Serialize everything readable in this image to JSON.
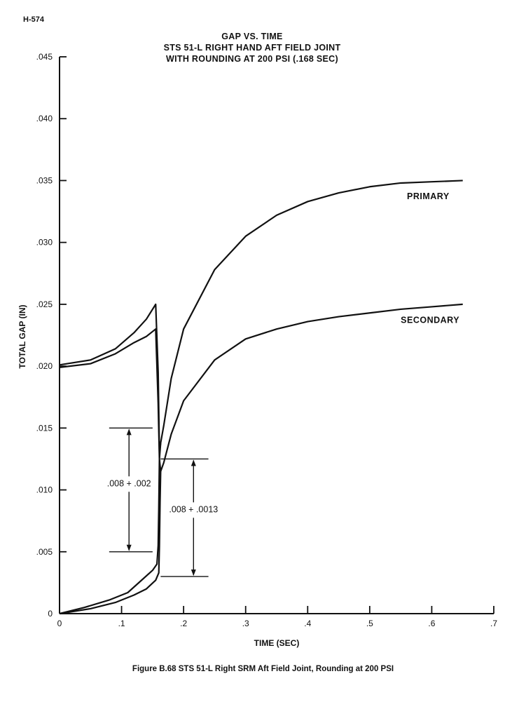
{
  "page_id": "H-574",
  "caption": "Figure B.68 STS 51-L Right SRM Aft Field Joint, Rounding at 200 PSI",
  "chart_data": {
    "type": "line",
    "title_lines": [
      "GAP VS. TIME",
      "STS 51-L RIGHT HAND AFT FIELD JOINT",
      "WITH ROUNDING AT 200 PSI (.168 SEC)"
    ],
    "xlabel": "TIME (SEC)",
    "ylabel": "TOTAL GAP (IN)",
    "xlim": [
      0,
      0.7
    ],
    "ylim": [
      0,
      0.045
    ],
    "xticks": [
      0,
      0.1,
      0.2,
      0.3,
      0.4,
      0.5,
      0.6,
      0.7
    ],
    "xtick_labels": [
      "0",
      ".1",
      ".2",
      ".3",
      ".4",
      ".5",
      ".6",
      ".7"
    ],
    "yticks": [
      0,
      0.005,
      0.01,
      0.015,
      0.02,
      0.025,
      0.03,
      0.035,
      0.04,
      0.045
    ],
    "ytick_labels": [
      "0",
      ".005",
      ".010",
      ".015",
      ".020",
      ".025",
      ".030",
      ".035",
      ".040",
      ".045"
    ],
    "grid": false,
    "series": [
      {
        "name": "PRIMARY",
        "label_at": [
          0.56,
          0.0335
        ],
        "points": [
          [
            0,
            0.0201
          ],
          [
            0.05,
            0.0205
          ],
          [
            0.09,
            0.0214
          ],
          [
            0.12,
            0.0227
          ],
          [
            0.14,
            0.0238
          ],
          [
            0.155,
            0.025
          ],
          [
            0.159,
            0.0195
          ],
          [
            0.161,
            0.013
          ],
          [
            0.163,
            0.0138
          ],
          [
            0.168,
            0.0152
          ],
          [
            0.18,
            0.019
          ],
          [
            0.2,
            0.023
          ],
          [
            0.25,
            0.0278
          ],
          [
            0.3,
            0.0305
          ],
          [
            0.35,
            0.0322
          ],
          [
            0.4,
            0.0333
          ],
          [
            0.45,
            0.034
          ],
          [
            0.5,
            0.0345
          ],
          [
            0.55,
            0.0348
          ],
          [
            0.6,
            0.0349
          ],
          [
            0.65,
            0.035
          ]
        ]
      },
      {
        "name": "SECONDARY",
        "label_at": [
          0.55,
          0.0235
        ],
        "points": [
          [
            0,
            0.0199
          ],
          [
            0.05,
            0.0202
          ],
          [
            0.09,
            0.021
          ],
          [
            0.12,
            0.0219
          ],
          [
            0.14,
            0.0224
          ],
          [
            0.155,
            0.023
          ],
          [
            0.159,
            0.017
          ],
          [
            0.161,
            0.0125
          ],
          [
            0.163,
            0.0115
          ],
          [
            0.168,
            0.0122
          ],
          [
            0.18,
            0.0145
          ],
          [
            0.2,
            0.0172
          ],
          [
            0.25,
            0.0205
          ],
          [
            0.3,
            0.0222
          ],
          [
            0.35,
            0.023
          ],
          [
            0.4,
            0.0236
          ],
          [
            0.45,
            0.024
          ],
          [
            0.5,
            0.0243
          ],
          [
            0.55,
            0.0246
          ],
          [
            0.6,
            0.0248
          ],
          [
            0.65,
            0.025
          ]
        ]
      },
      {
        "name": "",
        "points": [
          [
            0,
            0.0
          ],
          [
            0.04,
            0.0005
          ],
          [
            0.08,
            0.0011
          ],
          [
            0.11,
            0.0017
          ],
          [
            0.13,
            0.0026
          ],
          [
            0.15,
            0.0035
          ],
          [
            0.157,
            0.004
          ],
          [
            0.159,
            0.0055
          ],
          [
            0.16,
            0.0085
          ],
          [
            0.161,
            0.0125
          ],
          [
            0.163,
            0.0138
          ]
        ]
      },
      {
        "name": "",
        "points": [
          [
            0,
            0.0
          ],
          [
            0.05,
            0.0004
          ],
          [
            0.09,
            0.0009
          ],
          [
            0.12,
            0.0015
          ],
          [
            0.14,
            0.002
          ],
          [
            0.155,
            0.0027
          ],
          [
            0.16,
            0.0033
          ],
          [
            0.161,
            0.0055
          ],
          [
            0.162,
            0.009
          ],
          [
            0.163,
            0.0115
          ]
        ]
      }
    ],
    "annotations": [
      {
        "text": ".008 + .002",
        "x_span": [
          0.08,
          0.15
        ],
        "bracket_x": 0.112,
        "y_top": 0.015,
        "y_bottom": 0.005,
        "label_y": 0.0103
      },
      {
        "text": ".008 + .0013",
        "x_span": [
          0.163,
          0.24
        ],
        "bracket_x": 0.216,
        "y_top": 0.0125,
        "y_bottom": 0.003,
        "label_y": 0.0082
      }
    ]
  }
}
